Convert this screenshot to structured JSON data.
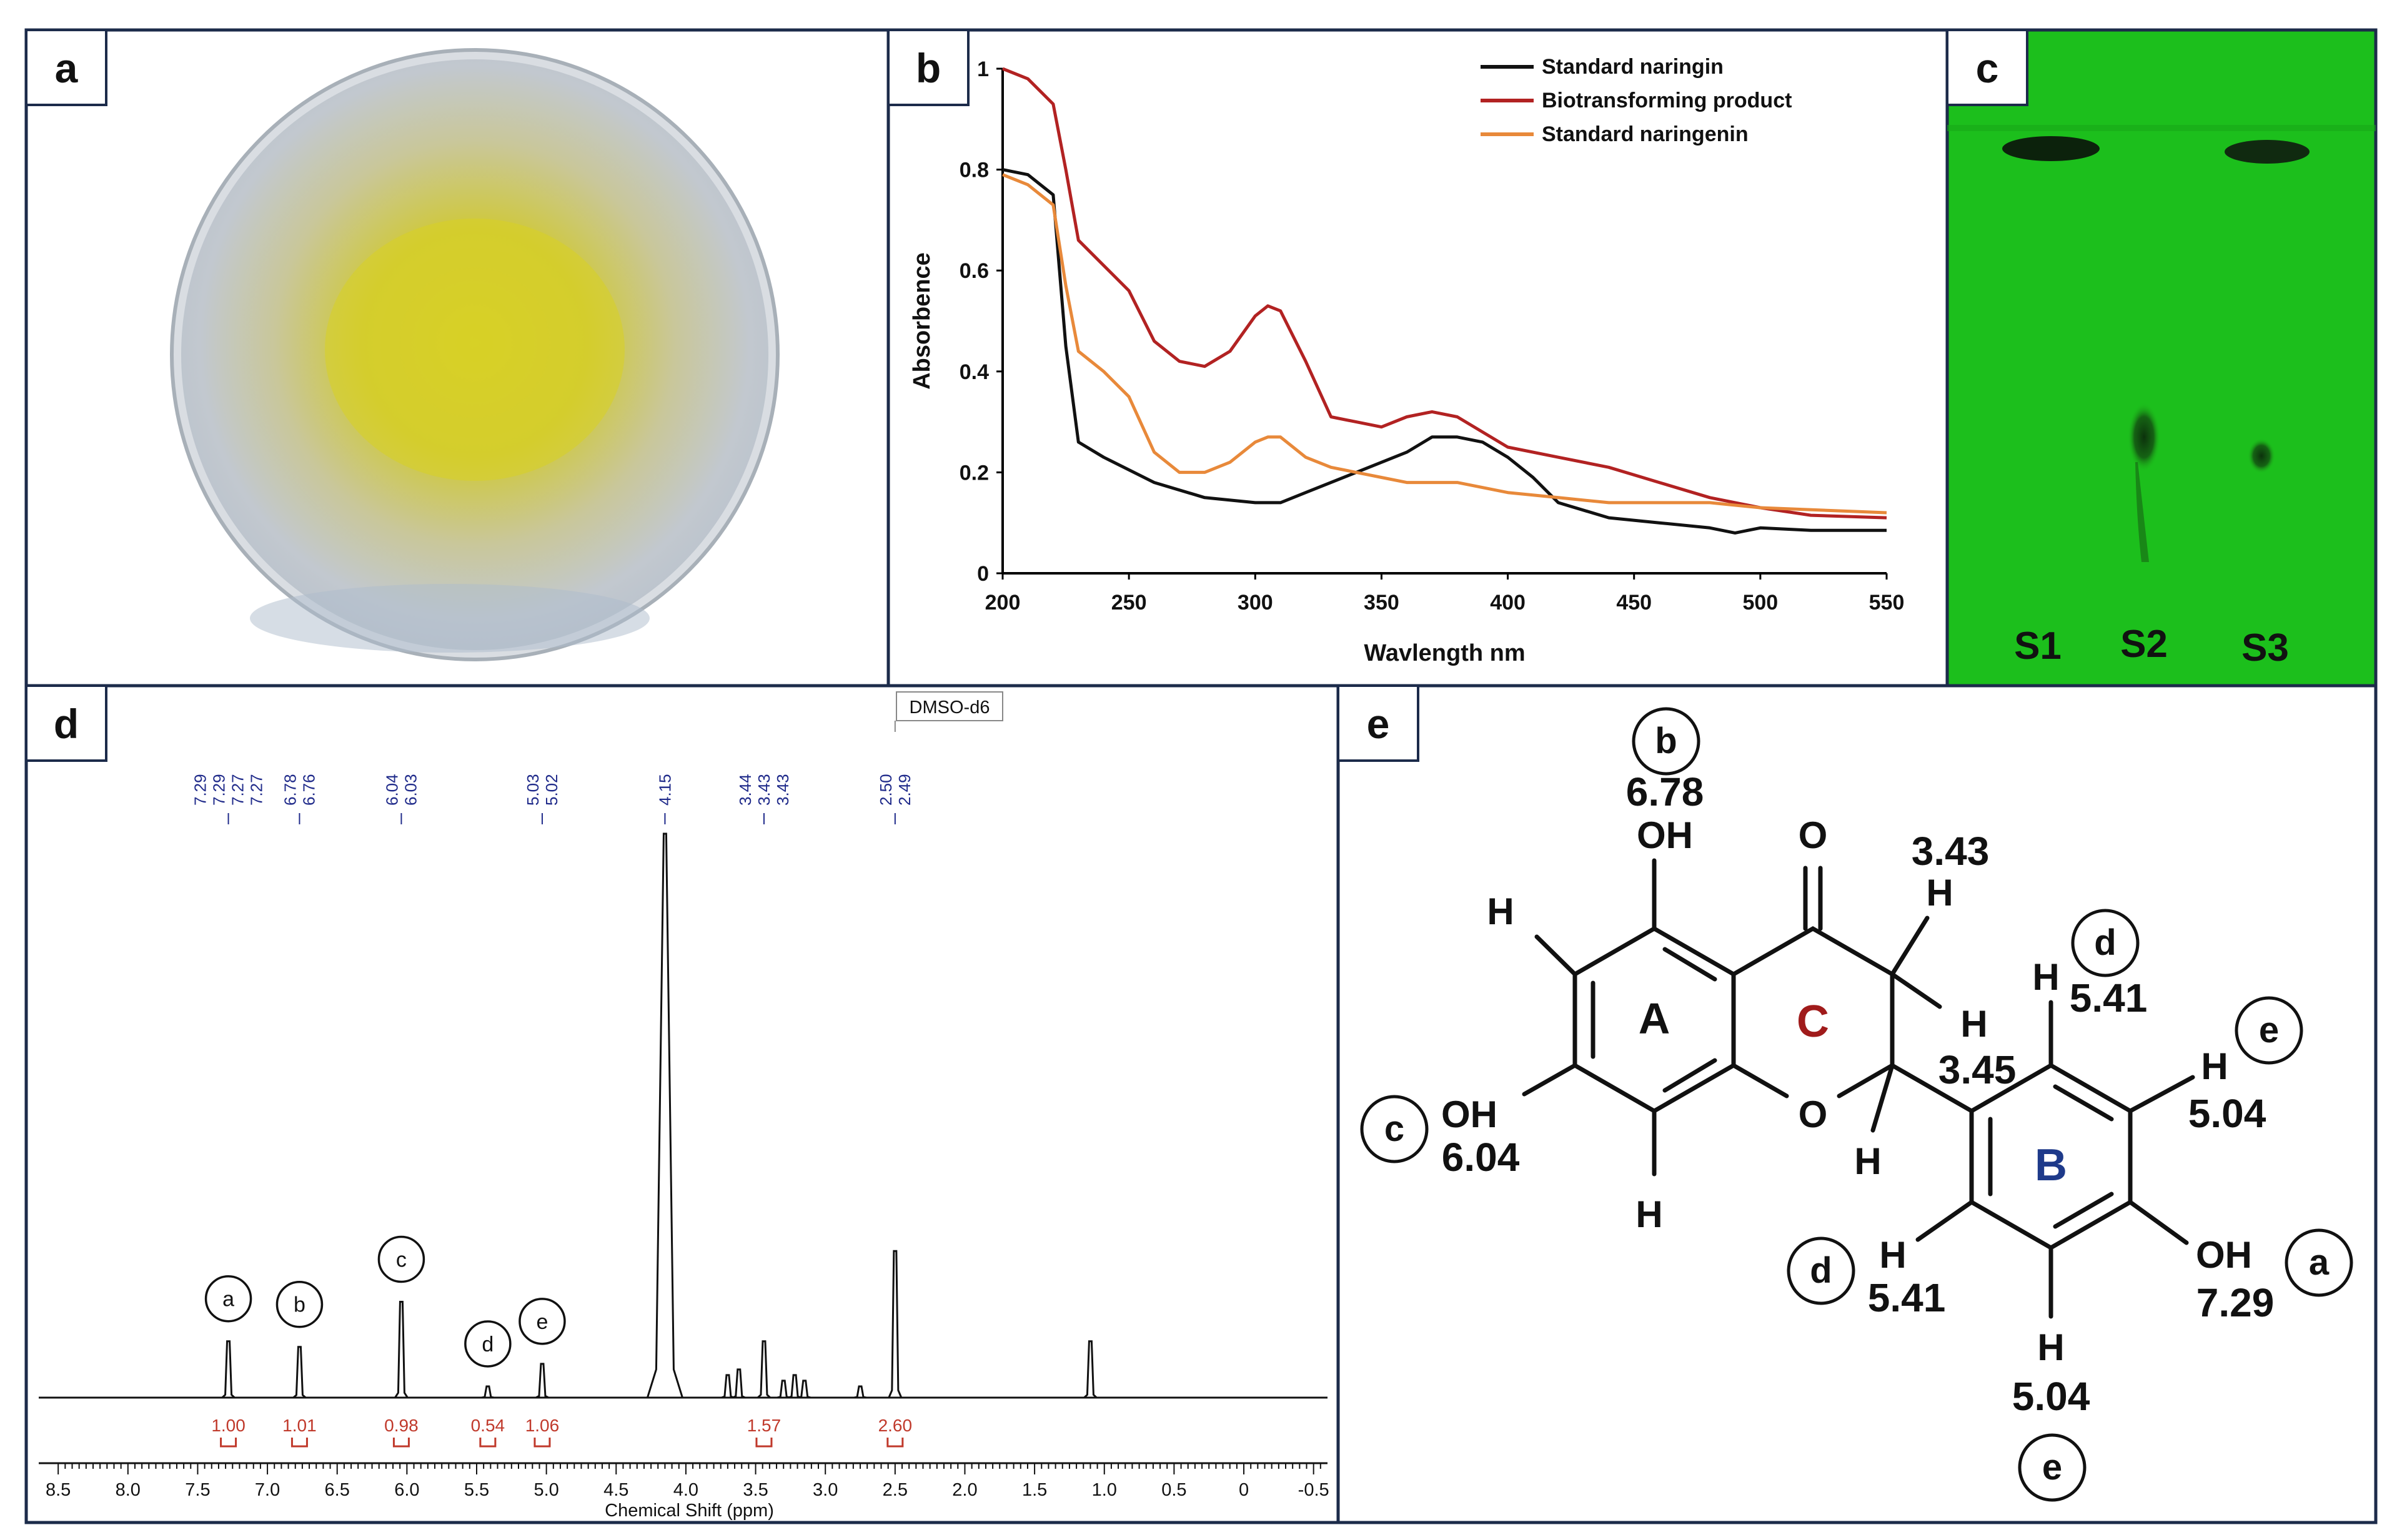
{
  "panels": {
    "a": {
      "tag": "a"
    },
    "b": {
      "tag": "b"
    },
    "c": {
      "tag": "c",
      "lanes": [
        "S1",
        "S2",
        "S3"
      ]
    },
    "d": {
      "tag": "d"
    },
    "e": {
      "tag": "e"
    }
  },
  "chart_data": [
    {
      "type": "line",
      "xlabel": "Wavlength nm",
      "ylabel": "Absorbence",
      "xlim": [
        200,
        550
      ],
      "ylim": [
        0,
        1
      ],
      "x_ticks": [
        "200",
        "250",
        "300",
        "350",
        "400",
        "450",
        "500",
        "550"
      ],
      "y_ticks": [
        "0",
        "0.2",
        "0.4",
        "0.6",
        "0.8",
        "1"
      ],
      "legend_position": "top-right",
      "series": [
        {
          "name": "Standard naringin",
          "color": "#111111",
          "x": [
            200,
            210,
            220,
            225,
            230,
            240,
            260,
            280,
            300,
            310,
            320,
            340,
            360,
            370,
            380,
            390,
            400,
            410,
            420,
            440,
            460,
            480,
            490,
            500,
            520,
            550
          ],
          "y": [
            0.8,
            0.79,
            0.75,
            0.45,
            0.26,
            0.23,
            0.18,
            0.15,
            0.14,
            0.14,
            0.16,
            0.2,
            0.24,
            0.27,
            0.27,
            0.26,
            0.23,
            0.19,
            0.14,
            0.11,
            0.1,
            0.09,
            0.08,
            0.09,
            0.085,
            0.085
          ]
        },
        {
          "name": "Biotransforming product",
          "color": "#b22222",
          "x": [
            200,
            210,
            220,
            225,
            230,
            240,
            250,
            260,
            270,
            280,
            290,
            300,
            305,
            310,
            320,
            330,
            340,
            350,
            360,
            370,
            380,
            400,
            420,
            440,
            460,
            480,
            500,
            520,
            550
          ],
          "y": [
            1.0,
            0.98,
            0.93,
            0.8,
            0.66,
            0.61,
            0.56,
            0.46,
            0.42,
            0.41,
            0.44,
            0.51,
            0.53,
            0.52,
            0.42,
            0.31,
            0.3,
            0.29,
            0.31,
            0.32,
            0.31,
            0.25,
            0.23,
            0.21,
            0.18,
            0.15,
            0.13,
            0.115,
            0.11
          ]
        },
        {
          "name": "Standard naringenin",
          "color": "#e8893a",
          "x": [
            200,
            210,
            220,
            225,
            230,
            240,
            250,
            260,
            270,
            280,
            290,
            300,
            305,
            310,
            320,
            330,
            340,
            350,
            360,
            380,
            400,
            420,
            440,
            460,
            480,
            500,
            550
          ],
          "y": [
            0.79,
            0.77,
            0.73,
            0.57,
            0.44,
            0.4,
            0.35,
            0.24,
            0.2,
            0.2,
            0.22,
            0.26,
            0.27,
            0.27,
            0.23,
            0.21,
            0.2,
            0.19,
            0.18,
            0.18,
            0.16,
            0.15,
            0.14,
            0.14,
            0.14,
            0.13,
            0.12
          ]
        }
      ]
    },
    {
      "type": "line",
      "xlabel": "Chemical Shift (ppm)",
      "xlim": [
        8.55,
        -0.6
      ],
      "x_ticks": [
        "8.5",
        "8.0",
        "7.5",
        "7.0",
        "6.5",
        "6.0",
        "5.5",
        "5.0",
        "4.5",
        "4.0",
        "3.5",
        "3.0",
        "2.5",
        "2.0",
        "1.5",
        "1.0",
        "0.5",
        "0",
        "-0.5"
      ],
      "solvent_label": "DMSO-d6",
      "peak_labels": [
        {
          "group": [
            "7.29",
            "7.29",
            "7.27",
            "7.27"
          ]
        },
        {
          "group": [
            "6.78",
            "6.76"
          ]
        },
        {
          "group": [
            "6.04",
            "6.03"
          ]
        },
        {
          "group": [
            "5.03",
            "5.02"
          ]
        },
        {
          "group": [
            "4.15"
          ]
        },
        {
          "group": [
            "3.44",
            "3.43",
            "3.43"
          ]
        },
        {
          "group": [
            "2.50",
            "2.49"
          ]
        }
      ],
      "integrals": [
        {
          "ppm": 7.28,
          "value": "1.00"
        },
        {
          "ppm": 6.77,
          "value": "1.01"
        },
        {
          "ppm": 6.04,
          "value": "0.98"
        },
        {
          "ppm": 5.42,
          "value": "0.54"
        },
        {
          "ppm": 5.03,
          "value": "1.06"
        },
        {
          "ppm": 3.44,
          "value": "1.57"
        },
        {
          "ppm": 2.5,
          "value": "2.60"
        }
      ],
      "peaks": [
        {
          "ppm": 7.28,
          "height": 0.1,
          "label": "a"
        },
        {
          "ppm": 6.77,
          "height": 0.09,
          "label": "b"
        },
        {
          "ppm": 6.04,
          "height": 0.17,
          "label": "c"
        },
        {
          "ppm": 5.42,
          "height": 0.02,
          "label": "d"
        },
        {
          "ppm": 5.03,
          "height": 0.06,
          "label": "e"
        },
        {
          "ppm": 4.15,
          "height": 1.0
        },
        {
          "ppm": 3.7,
          "height": 0.04
        },
        {
          "ppm": 3.62,
          "height": 0.05
        },
        {
          "ppm": 3.44,
          "height": 0.1
        },
        {
          "ppm": 3.3,
          "height": 0.03
        },
        {
          "ppm": 3.22,
          "height": 0.04
        },
        {
          "ppm": 3.15,
          "height": 0.03
        },
        {
          "ppm": 2.75,
          "height": 0.02
        },
        {
          "ppm": 2.5,
          "height": 0.26
        },
        {
          "ppm": 1.1,
          "height": 0.1
        }
      ]
    }
  ],
  "structure": {
    "rings": [
      "A",
      "C",
      "B"
    ],
    "atoms": {
      "O_ketone": "O",
      "O_ring": "O",
      "OH_top": "OH",
      "OH_left": "OH",
      "OH_right": "OH",
      "H": "H"
    },
    "shifts": {
      "b": "6.78",
      "c": "6.04",
      "a": "7.29",
      "h3": "3.43",
      "h2": "3.45",
      "d_top": "5.41",
      "d_bottom": "5.41",
      "e_right": "5.04",
      "e_bottom": "5.04"
    },
    "labels": {
      "a": "a",
      "b": "b",
      "c": "c",
      "d": "d",
      "e": "e"
    }
  }
}
